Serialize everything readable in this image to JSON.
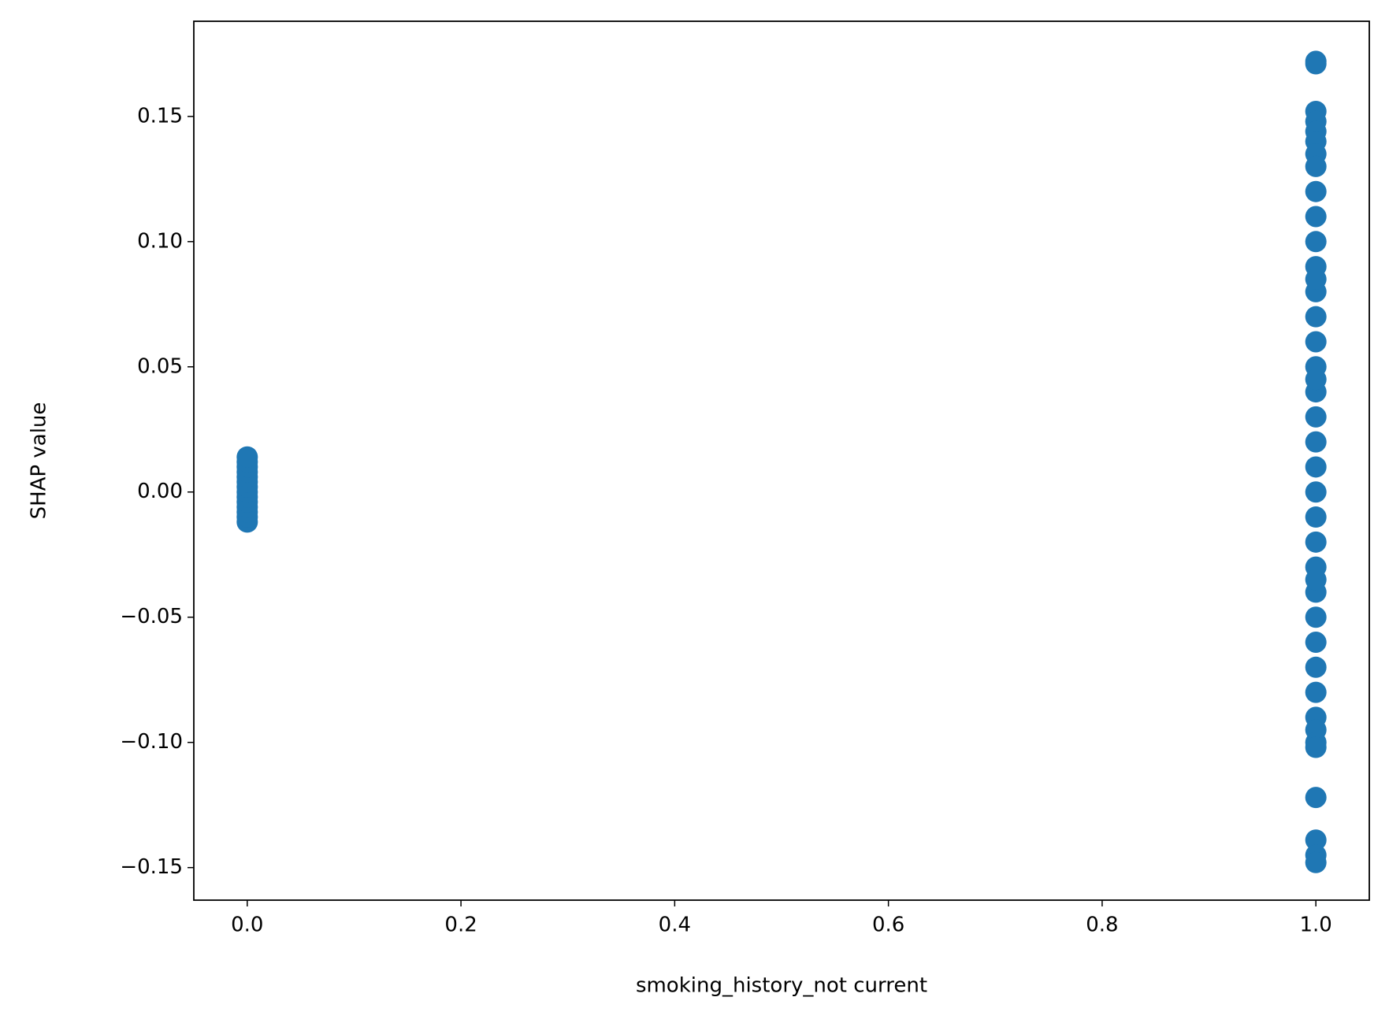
{
  "chart_data": {
    "type": "scatter",
    "xlabel": "smoking_history_not current",
    "ylabel": "SHAP value",
    "color": "#1f77b4",
    "x": [
      0,
      0,
      0,
      0,
      0,
      0,
      0,
      0,
      0,
      0,
      0,
      0,
      0,
      0,
      1,
      1,
      1,
      1,
      1,
      1,
      1,
      1,
      1,
      1,
      1,
      1,
      1,
      1,
      1,
      1,
      1,
      1,
      1,
      1,
      1,
      1,
      1,
      1,
      1,
      1,
      1,
      1,
      1,
      1,
      1,
      1,
      1,
      1,
      1,
      1,
      1,
      1,
      1,
      1
    ],
    "values": [
      -0.012,
      -0.01,
      -0.008,
      -0.006,
      -0.004,
      -0.002,
      0,
      0.002,
      0.004,
      0.006,
      0.008,
      0.01,
      0.012,
      0.014,
      0.172,
      0.171,
      0.152,
      0.148,
      0.144,
      0.14,
      0.135,
      0.13,
      0.12,
      0.11,
      0.1,
      0.09,
      0.08,
      0.07,
      0.06,
      0.05,
      0.04,
      0.03,
      0.02,
      0.01,
      0,
      -0.01,
      -0.02,
      -0.03,
      -0.04,
      -0.05,
      -0.06,
      -0.07,
      -0.08,
      -0.09,
      -0.095,
      -0.1,
      -0.102,
      -0.122,
      -0.139,
      -0.145,
      -0.148,
      0.045,
      -0.035,
      0.085
    ],
    "xlim": [
      -0.05,
      1.05
    ],
    "ylim": [
      -0.163,
      0.188
    ],
    "xticks": [
      {
        "value": 0,
        "label": "0.0"
      },
      0.2,
      0.4,
      0.6,
      0.8,
      {
        "value": 1,
        "label": "1.0"
      }
    ],
    "yticks": [
      {
        "value": -0.15,
        "label": "−0.15"
      },
      {
        "value": -0.1,
        "label": "−0.10"
      },
      {
        "value": -0.05,
        "label": "−0.05"
      },
      {
        "value": 0,
        "label": "0.00"
      },
      0.05,
      {
        "value": 0.1,
        "label": "0.10"
      },
      0.15
    ]
  }
}
